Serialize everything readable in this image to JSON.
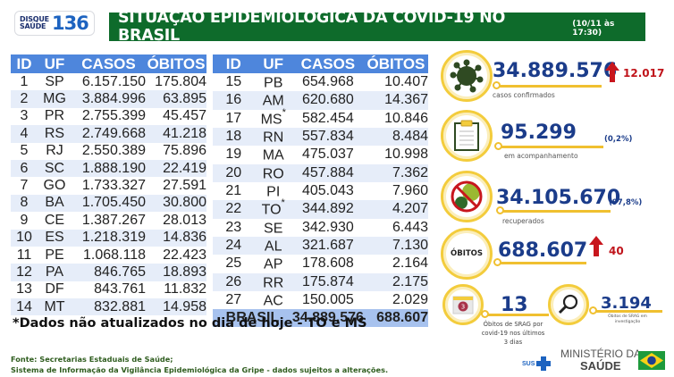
{
  "header": {
    "logo_line1": "DISQUE",
    "logo_line2": "SAÚDE",
    "logo_number": "136",
    "title": "SITUAÇÃO EPIDEMIOLÓGICA DA COVID-19 NO BRASIL",
    "date": "(10/11 às 17:30)"
  },
  "colors": {
    "title_bg": "#0e6b2b",
    "table_header": "#4e86dc",
    "row_alt": "#e6edf9",
    "total_row": "#a7c2ee",
    "accent_yellow": "#f3cc3c",
    "number_blue": "#1b3c8a",
    "increase_red": "#c0141b"
  },
  "table": {
    "columns": [
      "ID",
      "UF",
      "CASOS",
      "ÓBITOS"
    ],
    "left_rows": [
      {
        "id": "1",
        "uf": "SP",
        "casos": "6.157.150",
        "obitos": "175.804"
      },
      {
        "id": "2",
        "uf": "MG",
        "casos": "3.884.996",
        "obitos": "63.895"
      },
      {
        "id": "3",
        "uf": "PR",
        "casos": "2.755.399",
        "obitos": "45.457"
      },
      {
        "id": "4",
        "uf": "RS",
        "casos": "2.749.668",
        "obitos": "41.218"
      },
      {
        "id": "5",
        "uf": "RJ",
        "casos": "2.550.389",
        "obitos": "75.896"
      },
      {
        "id": "6",
        "uf": "SC",
        "casos": "1.888.190",
        "obitos": "22.419"
      },
      {
        "id": "7",
        "uf": "GO",
        "casos": "1.733.327",
        "obitos": "27.591"
      },
      {
        "id": "8",
        "uf": "BA",
        "casos": "1.705.450",
        "obitos": "30.800"
      },
      {
        "id": "9",
        "uf": "CE",
        "casos": "1.387.267",
        "obitos": "28.013"
      },
      {
        "id": "10",
        "uf": "ES",
        "casos": "1.218.319",
        "obitos": "14.836"
      },
      {
        "id": "11",
        "uf": "PE",
        "casos": "1.068.118",
        "obitos": "22.423"
      },
      {
        "id": "12",
        "uf": "PA",
        "casos": "846.765",
        "obitos": "18.893"
      },
      {
        "id": "13",
        "uf": "DF",
        "casos": "843.761",
        "obitos": "11.832"
      },
      {
        "id": "14",
        "uf": "MT",
        "casos": "832.881",
        "obitos": "14.958"
      }
    ],
    "right_rows": [
      {
        "id": "15",
        "uf": "PB",
        "casos": "654.968",
        "obitos": "10.407",
        "mark": ""
      },
      {
        "id": "16",
        "uf": "AM",
        "casos": "620.680",
        "obitos": "14.367",
        "mark": ""
      },
      {
        "id": "17",
        "uf": "MS",
        "casos": "582.454",
        "obitos": "10.846",
        "mark": "*"
      },
      {
        "id": "18",
        "uf": "RN",
        "casos": "557.834",
        "obitos": "8.484",
        "mark": ""
      },
      {
        "id": "19",
        "uf": "MA",
        "casos": "475.037",
        "obitos": "10.998",
        "mark": ""
      },
      {
        "id": "20",
        "uf": "RO",
        "casos": "457.884",
        "obitos": "7.362",
        "mark": ""
      },
      {
        "id": "21",
        "uf": "PI",
        "casos": "405.043",
        "obitos": "7.960",
        "mark": ""
      },
      {
        "id": "22",
        "uf": "TO",
        "casos": "344.892",
        "obitos": "4.207",
        "mark": "*"
      },
      {
        "id": "23",
        "uf": "SE",
        "casos": "342.930",
        "obitos": "6.443",
        "mark": ""
      },
      {
        "id": "24",
        "uf": "AL",
        "casos": "321.687",
        "obitos": "7.130",
        "mark": ""
      },
      {
        "id": "25",
        "uf": "AP",
        "casos": "178.608",
        "obitos": "2.164",
        "mark": ""
      },
      {
        "id": "26",
        "uf": "RR",
        "casos": "175.874",
        "obitos": "2.175",
        "mark": ""
      },
      {
        "id": "27",
        "uf": "AC",
        "casos": "150.005",
        "obitos": "2.029",
        "mark": ""
      }
    ],
    "total": {
      "label": "BRASIL",
      "casos": "34.889.576",
      "obitos": "688.607"
    }
  },
  "note": "*Dados não atualizados no dia de hoje - TO e MS",
  "source": {
    "line1": "Fonte: Secretarias Estaduais de Saúde;",
    "line2": "Sistema de Informação da Vigilância Epidemiológica da Gripe - dados sujeitos a alterações."
  },
  "stats": {
    "confirmed": {
      "value": "34.889.576",
      "label": "casos confirmados",
      "increase": "12.017",
      "icon": "virus-icon"
    },
    "monitoring": {
      "value": "95.299",
      "label": "em acompanhamento",
      "pct": "(0,2%)",
      "icon": "clipboard-icon"
    },
    "recovered": {
      "value": "34.105.670",
      "label": "recuperados",
      "pct": "(97,8%)",
      "icon": "no-virus-icon"
    },
    "deaths": {
      "badge": "ÓBITOS",
      "value": "688.607",
      "increase": "40"
    },
    "srag_recent": {
      "value": "13",
      "label": "Óbitos de SRAG por covid-19 nos últimos 3 dias",
      "calendar_day": "3",
      "icon": "calendar-icon"
    },
    "srag_investigation": {
      "value": "3.194",
      "label": "Óbitos de SRAG em investigação",
      "icon": "magnifier-icon"
    }
  },
  "footer": {
    "sus": "SUS",
    "ministry_line1": "MINISTÉRIO DA",
    "ministry_line2": "SAÚDE"
  }
}
